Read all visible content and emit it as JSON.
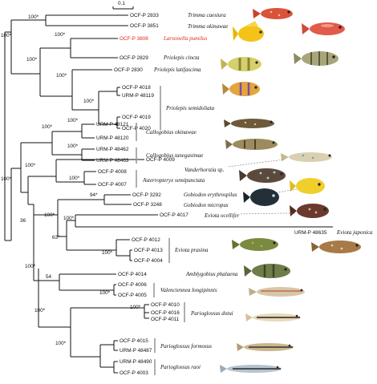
{
  "scale_bar": "0.1",
  "nodes": {
    "n_root": "100*",
    "n_trimma_grp": "100*",
    "n_lars_cin": "100*",
    "n_semi": "100*",
    "n_semi2": "100*",
    "n_callo": "100*",
    "n_callo_ok": "100*",
    "n_callo_ta": "100*",
    "n_vand": "100*",
    "n_aster": "100*",
    "n_36": "36",
    "n_gob": "100*",
    "n_gob2": "100*",
    "n_eviota_oc": "94*",
    "n_eviota_pr": "100*",
    "n_eviota_pr2": "100*",
    "n_63": "63*",
    "n_amb": "100*",
    "n_val": "100*",
    "n_54": "54",
    "n_par_dot": "100*",
    "n_par_form": "100*",
    "n_par_rao": "100*",
    "n_par_all": "100*"
  },
  "tips": [
    "OCF-P 2833",
    "OCF-P 3851",
    "OCF-P 3808",
    "OCF-P 2829",
    "OCF-P 2830",
    "OCF-P 4018",
    "URM-P 48119",
    "OCF-P 4019",
    "OCF-P 4020",
    "URM-P 48121",
    "URM-P 48120",
    "URM-P 48462",
    "URM-P 48463",
    "OCF-P 4009",
    "OCF-P 4008",
    "OCF-P 4007",
    "OCF-P 3292",
    "OCF-P 3248",
    "OCF-P 4017",
    "URM-P 48635",
    "OCF-P 4012",
    "OCF-P 4013",
    "OCF-P 4004",
    "OCF-P 4014",
    "OCF-P 4006",
    "OCF-P 4005",
    "OCF-P 4010",
    "OCF-P 4016",
    "OCF-P 4011",
    "OCF-P 4015",
    "URM-P 48487",
    "URM-P 48490",
    "OCF-P 4003"
  ],
  "species": {
    "trimma_caesiura": "Trimma caesiura",
    "trimma_okinawae": "Trimma okinawae",
    "larsonella_pumilus": "Larsonella pumilus",
    "priolepis_cincta": "Priolepis cincta",
    "priolepis_latifascima": "Priolepis latifascima",
    "priolepis_semidoliata": "Priolepis semidoliata",
    "callogobius_okinawae": "Callogobius okinawae",
    "callogobius_tanegasimae": "Callogobius tanegasimae",
    "vanderhorstia": "Vanderhorstia",
    "vanderhorstia_sp": " sp.",
    "asterropteryx": "Asterropteryx semipunctata",
    "gobiodon_erythrospilus": "Gobiodon erythrospilus",
    "gobiodon_micropus": "Gobiodon micropus",
    "eviota_ocellifer": "Eviota ocellifer",
    "eviota_japonica": "Eviota japonica",
    "eviota_prasina": "Eviota prasina",
    "amblygobius": "Amblygobius phalaena",
    "valenciennea": "Valenciennea longipinnis",
    "parioglossus_dotui": "Parioglossus dotui",
    "parioglossus_formosus": "Parioglossus formosus",
    "parioglossus_raoi": "Parioglossus raoi"
  },
  "colors": {
    "highlight": "#e0261c",
    "branch": "#111111",
    "bar": "#9a9a9a"
  }
}
